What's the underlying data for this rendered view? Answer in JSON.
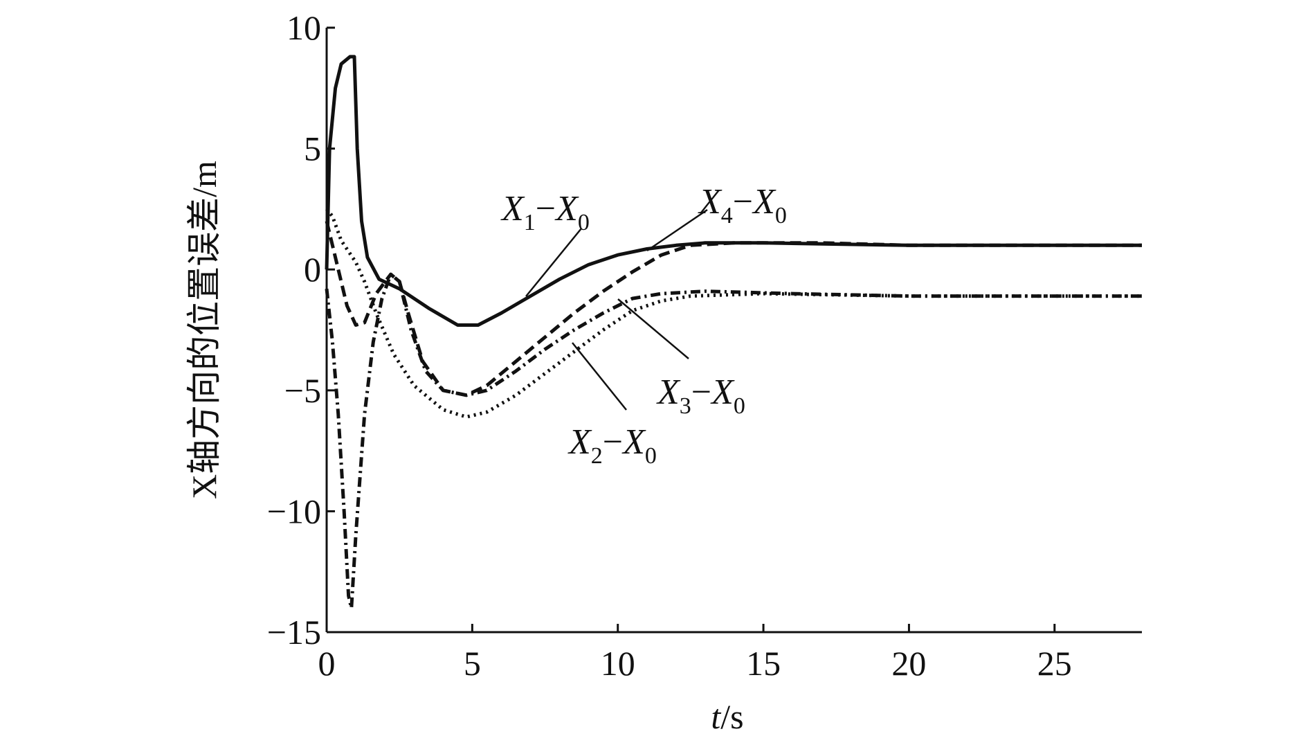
{
  "chart_data": {
    "type": "line",
    "xlabel": "t/s",
    "ylabel": "X轴方向的位置误差/m",
    "xlim": [
      0,
      28
    ],
    "ylim": [
      -15,
      10
    ],
    "xticks": [
      0,
      5,
      10,
      15,
      20,
      25
    ],
    "yticks": [
      10,
      5,
      0,
      -5,
      -10,
      -15
    ],
    "xtick_labels": [
      "0",
      "5",
      "10",
      "15",
      "20",
      "25"
    ],
    "ytick_labels": [
      "10",
      "5",
      "0",
      "−5",
      "−10",
      "−15"
    ],
    "grid": false,
    "legend": "none",
    "series": [
      {
        "name": "X1−X0",
        "style": "solid",
        "points": [
          [
            0,
            0
          ],
          [
            0.1,
            5
          ],
          [
            0.3,
            7.5
          ],
          [
            0.5,
            8.5
          ],
          [
            0.8,
            8.8
          ],
          [
            0.95,
            8.8
          ],
          [
            1.05,
            5
          ],
          [
            1.2,
            2
          ],
          [
            1.4,
            0.5
          ],
          [
            1.8,
            -0.4
          ],
          [
            2.5,
            -0.8
          ],
          [
            3.5,
            -1.6
          ],
          [
            4.5,
            -2.3
          ],
          [
            5.2,
            -2.3
          ],
          [
            6,
            -1.8
          ],
          [
            7,
            -1.1
          ],
          [
            8,
            -0.4
          ],
          [
            9,
            0.2
          ],
          [
            10,
            0.6
          ],
          [
            11,
            0.85
          ],
          [
            12,
            1.0
          ],
          [
            13,
            1.1
          ],
          [
            15,
            1.1
          ],
          [
            20,
            1.0
          ],
          [
            28,
            1.0
          ]
        ]
      },
      {
        "name": "X2−X0",
        "style": "dotted",
        "points": [
          [
            0,
            2.5
          ],
          [
            0.2,
            2.2
          ],
          [
            0.5,
            1.2
          ],
          [
            1,
            0.3
          ],
          [
            1.3,
            -0.5
          ],
          [
            1.7,
            -1.8
          ],
          [
            2.3,
            -3.5
          ],
          [
            3,
            -4.8
          ],
          [
            4,
            -5.8
          ],
          [
            4.8,
            -6.1
          ],
          [
            5.5,
            -5.9
          ],
          [
            6.5,
            -5.2
          ],
          [
            7.5,
            -4.3
          ],
          [
            8.5,
            -3.4
          ],
          [
            9.5,
            -2.5
          ],
          [
            10.5,
            -1.7
          ],
          [
            11.5,
            -1.3
          ],
          [
            12.5,
            -1.1
          ],
          [
            15,
            -1.0
          ],
          [
            20,
            -1.1
          ],
          [
            28,
            -1.1
          ]
        ]
      },
      {
        "name": "X3−X0",
        "style": "dashdot",
        "points": [
          [
            0,
            -0.8
          ],
          [
            0.2,
            -3
          ],
          [
            0.4,
            -6
          ],
          [
            0.6,
            -10
          ],
          [
            0.75,
            -13.5
          ],
          [
            0.85,
            -14.0
          ],
          [
            1.0,
            -11
          ],
          [
            1.3,
            -6
          ],
          [
            1.6,
            -3
          ],
          [
            1.9,
            -1.2
          ],
          [
            2.2,
            -0.2
          ],
          [
            2.5,
            -0.5
          ],
          [
            2.9,
            -2.5
          ],
          [
            3.4,
            -4.2
          ],
          [
            4,
            -5.0
          ],
          [
            4.8,
            -5.2
          ],
          [
            5.5,
            -5.0
          ],
          [
            6.5,
            -4.2
          ],
          [
            7.5,
            -3.3
          ],
          [
            8.5,
            -2.5
          ],
          [
            9.5,
            -1.8
          ],
          [
            10.5,
            -1.2
          ],
          [
            11.5,
            -1.0
          ],
          [
            13,
            -0.9
          ],
          [
            16,
            -1.0
          ],
          [
            20,
            -1.1
          ],
          [
            28,
            -1.1
          ]
        ]
      },
      {
        "name": "X4−X0",
        "style": "dashed",
        "points": [
          [
            0,
            2.0
          ],
          [
            0.3,
            0.5
          ],
          [
            0.7,
            -1.5
          ],
          [
            1,
            -2.3
          ],
          [
            1.3,
            -2.2
          ],
          [
            1.7,
            -1.0
          ],
          [
            2.2,
            -0.2
          ],
          [
            2.5,
            -0.5
          ],
          [
            2.8,
            -1.8
          ],
          [
            3.3,
            -3.8
          ],
          [
            4,
            -5.0
          ],
          [
            4.8,
            -5.2
          ],
          [
            5.5,
            -4.8
          ],
          [
            6.5,
            -3.8
          ],
          [
            7.5,
            -2.8
          ],
          [
            8.5,
            -1.8
          ],
          [
            9.5,
            -0.9
          ],
          [
            10.5,
            -0.1
          ],
          [
            11.5,
            0.6
          ],
          [
            12.5,
            1.0
          ],
          [
            14,
            1.1
          ],
          [
            17,
            1.1
          ],
          [
            20,
            1.0
          ],
          [
            28,
            1.0
          ]
        ]
      }
    ],
    "annotations": [
      {
        "var": "X",
        "sub": "1",
        "op": "−",
        "var2": "X",
        "sub2": "0"
      },
      {
        "var": "X",
        "sub": "4",
        "op": "−",
        "var2": "X",
        "sub2": "0"
      },
      {
        "var": "X",
        "sub": "3",
        "op": "−",
        "var2": "X",
        "sub2": "0"
      },
      {
        "var": "X",
        "sub": "2",
        "op": "−",
        "var2": "X",
        "sub2": "0"
      }
    ]
  }
}
